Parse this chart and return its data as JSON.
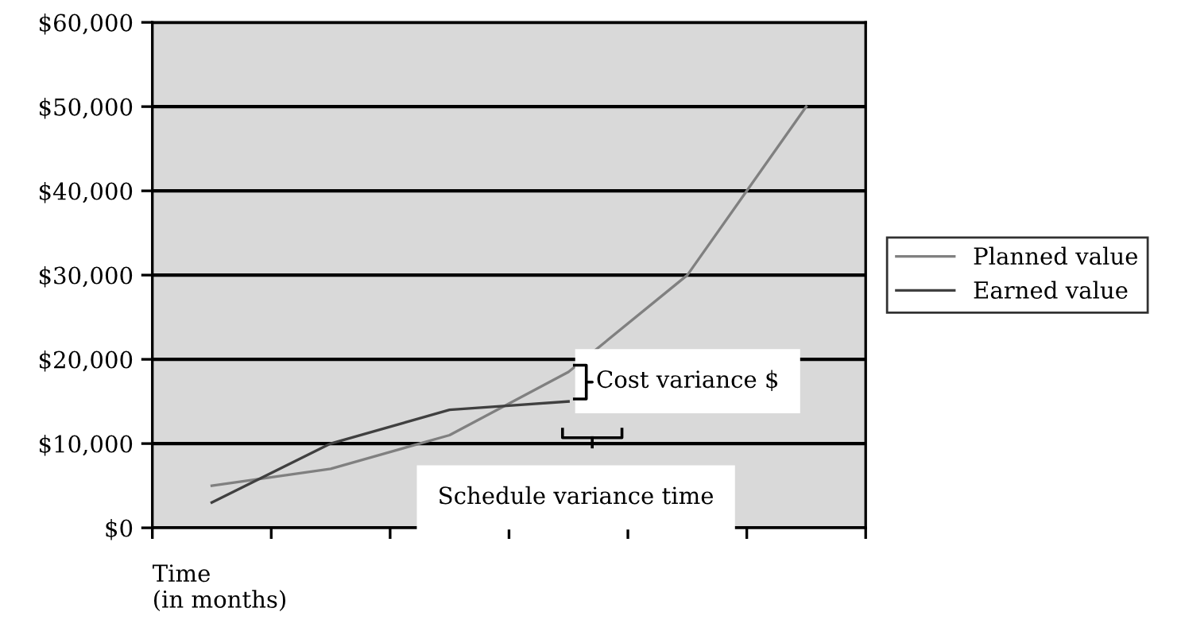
{
  "chart_data": {
    "type": "line",
    "xlabel": "Time\n(in months)",
    "categories": [
      null,
      null,
      null,
      null,
      null,
      null
    ],
    "series": [
      {
        "name": "Planned value",
        "color": "#808080",
        "values": [
          5000,
          7000,
          11000,
          18500,
          30000,
          50000
        ]
      },
      {
        "name": "Earned value",
        "color": "#404040",
        "values": [
          3000,
          10000,
          14000,
          15000,
          null,
          null
        ]
      }
    ],
    "ylim": [
      0,
      60000
    ],
    "yticks": [
      {
        "value": 0,
        "label": "$0"
      },
      {
        "value": 10000,
        "label": "$10,000"
      },
      {
        "value": 20000,
        "label": "$20,000"
      },
      {
        "value": 30000,
        "label": "$30,000"
      },
      {
        "value": 40000,
        "label": "$40,000"
      },
      {
        "value": 50000,
        "label": "$50,000"
      },
      {
        "value": 60000,
        "label": "$60,000"
      }
    ],
    "grid": "y",
    "legend": "right",
    "marker": "none",
    "line_style": "solid",
    "annotations": [
      "Cost variance $",
      "Schedule variance time"
    ]
  }
}
